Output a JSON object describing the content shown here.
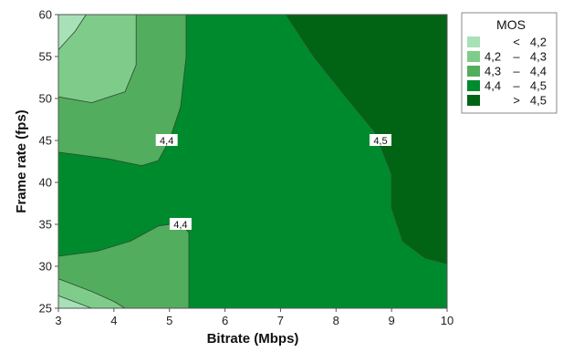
{
  "chart_data": {
    "type": "contour",
    "xlabel": "Bitrate (Mbps)",
    "ylabel": "Frame rate (fps)",
    "xlim": [
      3,
      10
    ],
    "ylim": [
      25,
      60
    ],
    "xticks": [
      "3",
      "4",
      "5",
      "6",
      "7",
      "8",
      "9",
      "10"
    ],
    "yticks": [
      "25",
      "30",
      "35",
      "40",
      "45",
      "50",
      "55",
      "60"
    ],
    "legend": {
      "title": "MOS",
      "position": "right",
      "entries": [
        {
          "symbol": "<",
          "from": "",
          "to": "4,2",
          "color": "#a8e0b8"
        },
        {
          "symbol": "",
          "from": "4,2",
          "to": "4,3",
          "color": "#7fcc8a"
        },
        {
          "symbol": "",
          "from": "4,3",
          "to": "4,4",
          "color": "#52ad5e"
        },
        {
          "symbol": "",
          "from": "4,4",
          "to": "4,5",
          "color": "#008a2e"
        },
        {
          "symbol": ">",
          "from": "",
          "to": "4,5",
          "color": "#006414"
        }
      ]
    },
    "regions": [
      {
        "level": "4,4 – 4,5",
        "color": "#008a2e",
        "points": [
          [
            3,
            25
          ],
          [
            10,
            25
          ],
          [
            10,
            60
          ],
          [
            3,
            60
          ]
        ]
      },
      {
        "level": "4,3 – 4,4",
        "color": "#52ad5e",
        "points": [
          [
            3,
            43.6
          ],
          [
            3.9,
            42.8
          ],
          [
            4.5,
            42.0
          ],
          [
            4.8,
            42.6
          ],
          [
            5.0,
            45.0
          ],
          [
            5.2,
            49.0
          ],
          [
            5.3,
            55.0
          ],
          [
            5.3,
            60.0
          ],
          [
            3,
            60
          ]
        ]
      },
      {
        "level": "4,2 – 4,3",
        "color": "#7fcc8a",
        "points": [
          [
            3,
            50.2
          ],
          [
            3.6,
            49.5
          ],
          [
            4.2,
            50.8
          ],
          [
            4.4,
            54.0
          ],
          [
            4.4,
            57.0
          ],
          [
            4.4,
            60.0
          ],
          [
            3,
            60
          ]
        ]
      },
      {
        "level": "< 4,2",
        "color": "#a8e0b8",
        "points": [
          [
            3,
            55.8
          ],
          [
            3.3,
            58.0
          ],
          [
            3.5,
            60
          ],
          [
            3,
            60
          ]
        ]
      },
      {
        "level": "4,3 – 4,4",
        "color": "#52ad5e",
        "points": [
          [
            3,
            31.2
          ],
          [
            3.7,
            31.8
          ],
          [
            4.3,
            33.0
          ],
          [
            4.8,
            34.8
          ],
          [
            5.2,
            35.2
          ],
          [
            5.35,
            34.0
          ],
          [
            5.35,
            25
          ],
          [
            3,
            25
          ]
        ]
      },
      {
        "level": "4,2 – 4,3",
        "color": "#7fcc8a",
        "points": [
          [
            3,
            28.5
          ],
          [
            3.6,
            27.0
          ],
          [
            4.0,
            25.8
          ],
          [
            4.2,
            25
          ],
          [
            3,
            25
          ]
        ]
      },
      {
        "level": "< 4,2",
        "color": "#a8e0b8",
        "points": [
          [
            3,
            26.5
          ],
          [
            3.4,
            25.5
          ],
          [
            3.6,
            25
          ],
          [
            3,
            25
          ]
        ]
      },
      {
        "level": "> 4,5",
        "color": "#006414",
        "points": [
          [
            7.1,
            60
          ],
          [
            7.6,
            55
          ],
          [
            8.2,
            50
          ],
          [
            8.7,
            46
          ],
          [
            9.0,
            41
          ],
          [
            9.0,
            37
          ],
          [
            9.2,
            33
          ],
          [
            9.6,
            31
          ],
          [
            10,
            30.3
          ],
          [
            10,
            60
          ]
        ]
      }
    ],
    "contour_labels": [
      {
        "text": "4,4",
        "x": 4.95,
        "y": 45
      },
      {
        "text": "4,4",
        "x": 5.2,
        "y": 35
      },
      {
        "text": "4,5",
        "x": 8.8,
        "y": 45
      }
    ]
  }
}
